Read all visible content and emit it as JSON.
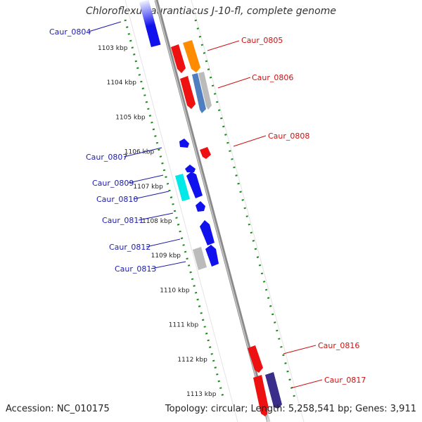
{
  "header": {
    "title": "Chloroflexus aurantiacus J-10-fl, complete genome"
  },
  "footer": {
    "accession": "Accession: NC_010175",
    "summary": "Topology: circular; Length: 5,258,541 bp; Genes: 3,911"
  },
  "ruler": {
    "ticks": [
      "1103 kbp",
      "1104 kbp",
      "1105 kbp",
      "1106 kbp",
      "1107 kbp",
      "1108 kbp",
      "1109 kbp",
      "1110 kbp",
      "1111 kbp",
      "1112 kbp",
      "1113 kbp"
    ]
  },
  "colors": {
    "blue": "#1111ee",
    "red": "#ee1111",
    "orange": "#ff8c00",
    "steel": "#4f7fc0",
    "grey": "#bbbbbb",
    "cyan": "#00e8e8",
    "purple": "#3a2e8a",
    "ruler_green": "#1a8a1a",
    "label_blue": "#1c1ca8",
    "label_red": "#cc1111"
  },
  "genes": {
    "left": [
      "Caur_0804",
      "Caur_0807",
      "Caur_0809",
      "Caur_0810",
      "Caur_0811",
      "Caur_0812",
      "Caur_0813"
    ],
    "right": [
      "Caur_0805",
      "Caur_0806",
      "Caur_0808",
      "Caur_0816",
      "Caur_0817"
    ]
  }
}
